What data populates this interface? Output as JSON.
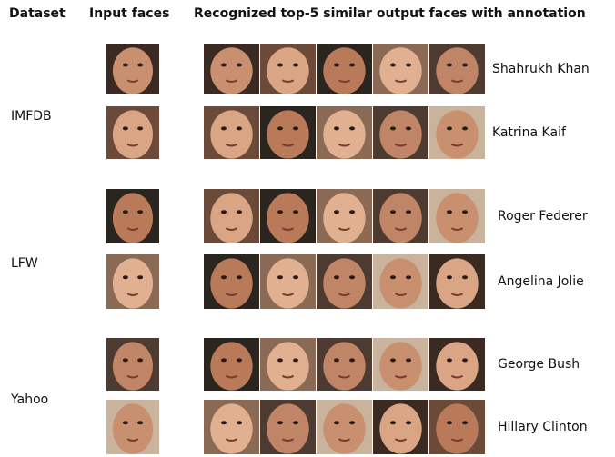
{
  "header": {
    "dataset": "Dataset",
    "input": "Input faces",
    "output": "Recognized top-5 similar output faces with annotation"
  },
  "groups": [
    {
      "dataset": "IMFDB",
      "people": [
        "Shahrukh Khan",
        "Katrina Kaif"
      ]
    },
    {
      "dataset": "LFW",
      "people": [
        "Roger Federer",
        "Angelina Jolie"
      ]
    },
    {
      "dataset": "Yahoo",
      "people": [
        "George Bush",
        "Hillary Clinton"
      ]
    }
  ]
}
